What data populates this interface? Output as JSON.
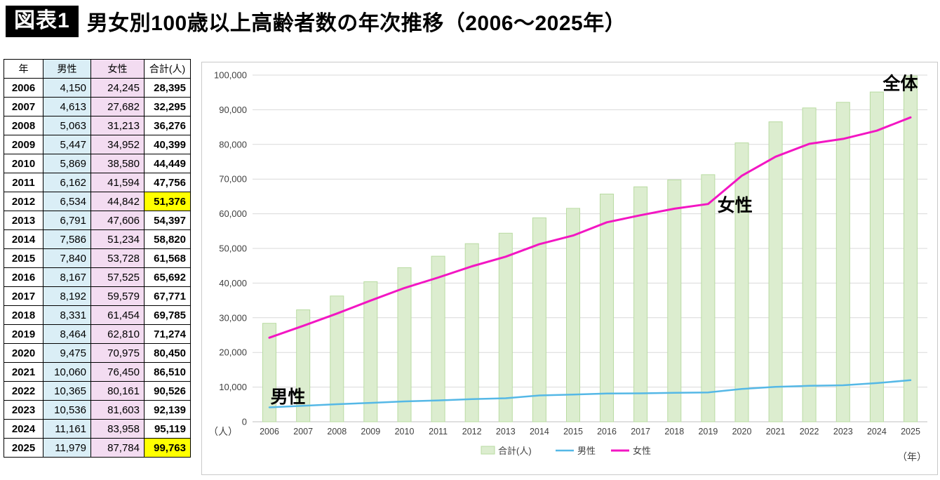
{
  "header": {
    "badge": "図表1",
    "title": "男女別100歳以上高齢者数の年次推移（2006〜2025年）"
  },
  "table": {
    "columns": [
      "年",
      "男性",
      "女性",
      "合計(人)"
    ],
    "rows": [
      {
        "year": "2006",
        "male": "4,150",
        "female": "24,245",
        "total": "28,395",
        "highlight": false
      },
      {
        "year": "2007",
        "male": "4,613",
        "female": "27,682",
        "total": "32,295",
        "highlight": false
      },
      {
        "year": "2008",
        "male": "5,063",
        "female": "31,213",
        "total": "36,276",
        "highlight": false
      },
      {
        "year": "2009",
        "male": "5,447",
        "female": "34,952",
        "total": "40,399",
        "highlight": false
      },
      {
        "year": "2010",
        "male": "5,869",
        "female": "38,580",
        "total": "44,449",
        "highlight": false
      },
      {
        "year": "2011",
        "male": "6,162",
        "female": "41,594",
        "total": "47,756",
        "highlight": false
      },
      {
        "year": "2012",
        "male": "6,534",
        "female": "44,842",
        "total": "51,376",
        "highlight": true
      },
      {
        "year": "2013",
        "male": "6,791",
        "female": "47,606",
        "total": "54,397",
        "highlight": false
      },
      {
        "year": "2014",
        "male": "7,586",
        "female": "51,234",
        "total": "58,820",
        "highlight": false
      },
      {
        "year": "2015",
        "male": "7,840",
        "female": "53,728",
        "total": "61,568",
        "highlight": false
      },
      {
        "year": "2016",
        "male": "8,167",
        "female": "57,525",
        "total": "65,692",
        "highlight": false
      },
      {
        "year": "2017",
        "male": "8,192",
        "female": "59,579",
        "total": "67,771",
        "highlight": false
      },
      {
        "year": "2018",
        "male": "8,331",
        "female": "61,454",
        "total": "69,785",
        "highlight": false
      },
      {
        "year": "2019",
        "male": "8,464",
        "female": "62,810",
        "total": "71,274",
        "highlight": false
      },
      {
        "year": "2020",
        "male": "9,475",
        "female": "70,975",
        "total": "80,450",
        "highlight": false
      },
      {
        "year": "2021",
        "male": "10,060",
        "female": "76,450",
        "total": "86,510",
        "highlight": false
      },
      {
        "year": "2022",
        "male": "10,365",
        "female": "80,161",
        "total": "90,526",
        "highlight": false
      },
      {
        "year": "2023",
        "male": "10,536",
        "female": "81,603",
        "total": "92,139",
        "highlight": false
      },
      {
        "year": "2024",
        "male": "11,161",
        "female": "83,958",
        "total": "95,119",
        "highlight": false
      },
      {
        "year": "2025",
        "male": "11,979",
        "female": "87,784",
        "total": "99,763",
        "highlight": true
      }
    ]
  },
  "chart_data": {
    "type": "bar+line",
    "title": "男女別100歳以上高齢者数の年次推移（2006〜2025年）",
    "categories": [
      2006,
      2007,
      2008,
      2009,
      2010,
      2011,
      2012,
      2013,
      2014,
      2015,
      2016,
      2017,
      2018,
      2019,
      2020,
      2021,
      2022,
      2023,
      2024,
      2025
    ],
    "series": [
      {
        "name": "合計(人)",
        "type": "bar",
        "color": "#dcedcf",
        "border": "#b9dba2",
        "values": [
          28395,
          32295,
          36276,
          40399,
          44449,
          47756,
          51376,
          54397,
          58820,
          61568,
          65692,
          67771,
          69785,
          71274,
          80450,
          86510,
          90526,
          92139,
          95119,
          99763
        ]
      },
      {
        "name": "男性",
        "type": "line",
        "color": "#55b8e6",
        "width": 2.5,
        "values": [
          4150,
          4613,
          5063,
          5447,
          5869,
          6162,
          6534,
          6791,
          7586,
          7840,
          8167,
          8192,
          8331,
          8464,
          9475,
          10060,
          10365,
          10536,
          11161,
          11979
        ]
      },
      {
        "name": "女性",
        "type": "line",
        "color": "#f316c3",
        "width": 3,
        "values": [
          24245,
          27682,
          31213,
          34952,
          38580,
          41594,
          44842,
          47606,
          51234,
          53728,
          57525,
          59579,
          61454,
          62810,
          70975,
          76450,
          80161,
          81603,
          83958,
          87784
        ]
      }
    ],
    "ylim": [
      0,
      100000
    ],
    "ytick_step": 10000,
    "grid": true,
    "legend_position": "bottom",
    "unit_y": "（人）",
    "unit_x": "（年）",
    "annotations": [
      {
        "text": "全体",
        "xi": 18.7,
        "y": 97500
      },
      {
        "text": "女性",
        "xi": 13.8,
        "y": 62300
      },
      {
        "text": "男性",
        "xi": 0.55,
        "y": 7100
      }
    ],
    "legend": [
      "合計(人)",
      "男性",
      "女性"
    ]
  }
}
